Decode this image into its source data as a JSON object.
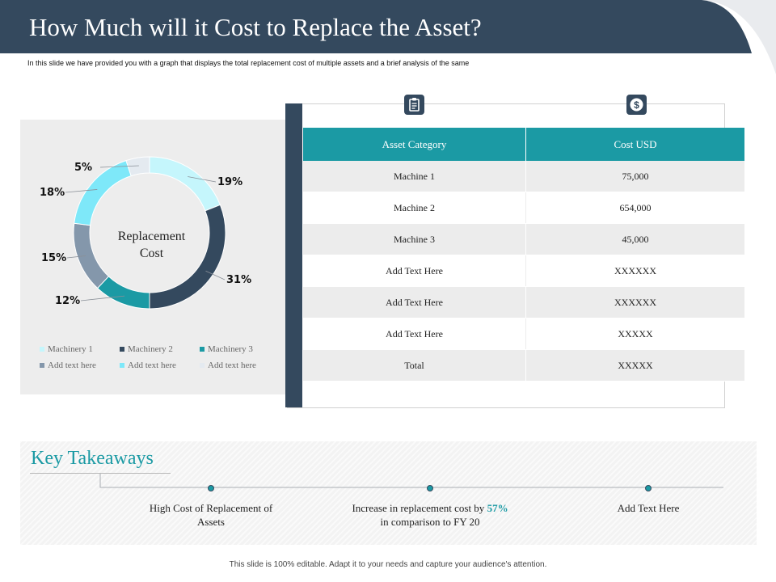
{
  "header": {
    "title": "How Much will it Cost to Replace the Asset?",
    "subtitle": "In this slide we have provided you with a graph that displays the total replacement cost of multiple assets and a brief analysis of the same"
  },
  "colors": {
    "header": "#34495e",
    "accent": "#1b9aa4",
    "panel": "#ededed"
  },
  "chart_data": {
    "type": "pie",
    "variant": "donut",
    "title": "",
    "center_label": [
      "Replacement",
      "Cost"
    ],
    "categories": [
      "Machinery 1",
      "Machinery 2",
      "Machinery 3",
      "Add text here",
      "Add text here",
      "Add text here"
    ],
    "values": [
      19,
      31,
      12,
      15,
      18,
      5
    ],
    "labels": [
      "19%",
      "31%",
      "12%",
      "15%",
      "18%",
      "5%"
    ],
    "colors": [
      "#c5f6fc",
      "#34495e",
      "#1b9aa4",
      "#8497ab",
      "#7ee8f9",
      "#e4eaf0"
    ],
    "legend_position": "bottom"
  },
  "table": {
    "icons": [
      "clipboard-icon",
      "dollar-icon"
    ],
    "headers": [
      "Asset Category",
      "Cost USD"
    ],
    "rows": [
      [
        "Machine 1",
        "75,000"
      ],
      [
        "Machine 2",
        "654,000"
      ],
      [
        "Machine 3",
        "45,000"
      ],
      [
        "Add Text Here",
        "XXXXXX"
      ],
      [
        "Add Text Here",
        "XXXXXX"
      ],
      [
        "Add Text Here",
        "XXXXX"
      ],
      [
        "Total",
        "XXXXX"
      ]
    ]
  },
  "takeaways": {
    "title": "Key Takeaways",
    "items": [
      {
        "text": "High Cost of Replacement of Assets"
      },
      {
        "pre": "Increase in replacement cost by",
        "accent": "57%",
        "post": "in comparison to FY 20"
      },
      {
        "text": "Add Text Here"
      }
    ]
  },
  "footer": "This slide is 100% editable. Adapt it to your needs and capture your audience's attention."
}
